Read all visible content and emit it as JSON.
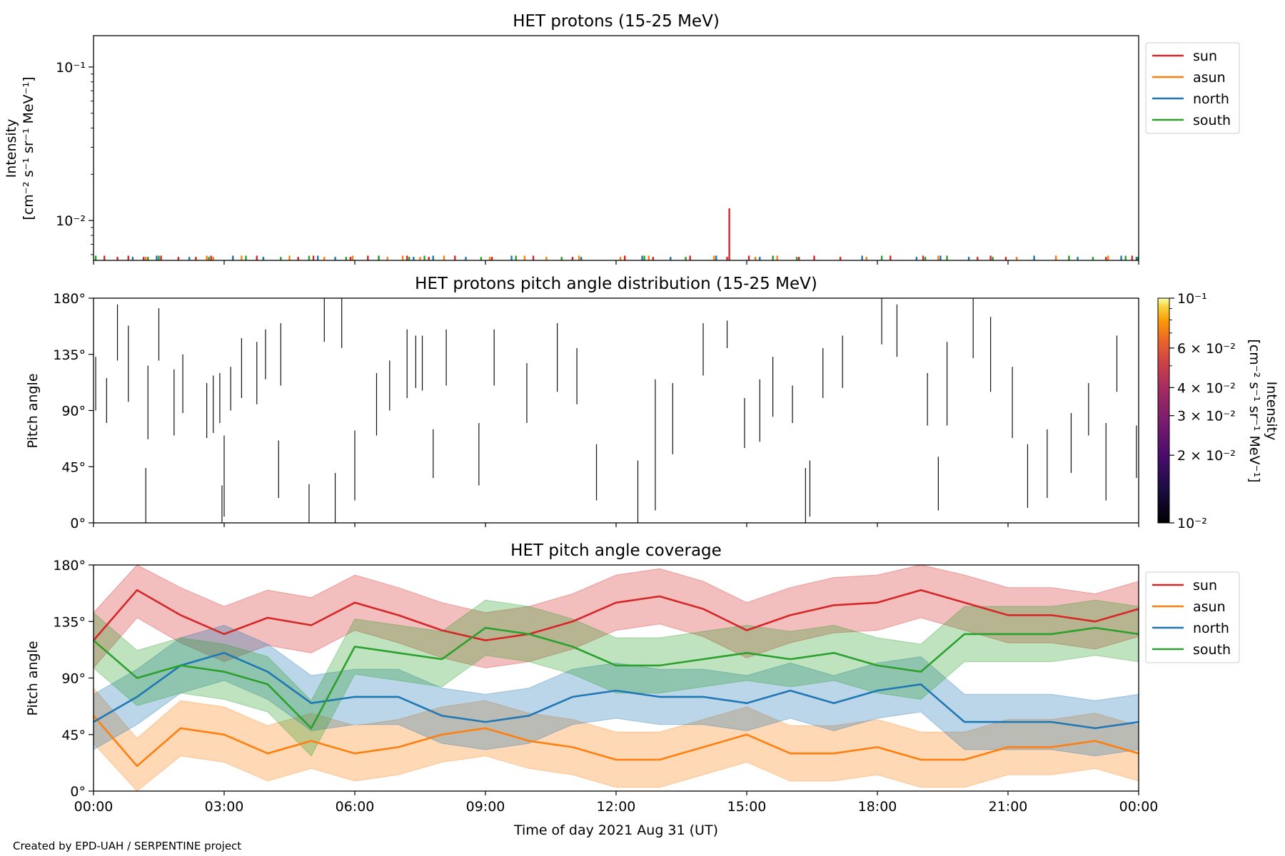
{
  "footer": {
    "credit": "Created by EPD-UAH / SERPENTINE project"
  },
  "chart_data": [
    {
      "id": "panel1",
      "type": "bar",
      "title": "HET protons (15-25 MeV)",
      "xlabel": "",
      "ylabel": [
        "Intensity",
        "[cm⁻² s⁻¹ sr⁻¹ MeV⁻¹]"
      ],
      "yscale": "log",
      "ylim": [
        0.0055,
        0.16
      ],
      "xlim": [
        0,
        24
      ],
      "yticks": [
        {
          "value": 0.01,
          "label": "10⁻²"
        },
        {
          "value": 0.1,
          "label": "10⁻¹"
        }
      ],
      "legend": {
        "placement": "outside-right-top",
        "entries": [
          "sun",
          "asun",
          "north",
          "south"
        ]
      },
      "colors": {
        "sun": "#d62728",
        "asun": "#ff7f0e",
        "north": "#1f77b4",
        "south": "#2ca02c"
      },
      "baseline": 0.0055,
      "series": [
        {
          "name": "sun",
          "x": [
            0.25,
            0.55,
            0.8,
            1.15,
            1.55,
            1.95,
            2.35,
            2.7,
            3.2,
            3.75,
            4.7,
            5.05,
            5.9,
            6.3,
            7.2,
            7.7,
            8.3,
            9.15,
            10.1,
            11.0,
            12.2,
            12.85,
            13.7,
            14.55,
            14.6,
            15.05,
            16.2,
            16.55,
            17.15,
            18.3,
            19.05,
            20.3,
            20.6,
            20.95,
            22.1,
            23.25,
            23.85
          ],
          "values": [
            0.0059,
            0.0058,
            0.0059,
            0.0058,
            0.0059,
            0.0058,
            0.0058,
            0.0059,
            0.0058,
            0.0059,
            0.0058,
            0.0059,
            0.0058,
            0.0059,
            0.0059,
            0.0058,
            0.0059,
            0.0058,
            0.0059,
            0.0058,
            0.0059,
            0.0058,
            0.0059,
            0.0058,
            0.012,
            0.0059,
            0.0058,
            0.0059,
            0.0058,
            0.0059,
            0.0059,
            0.0058,
            0.0059,
            0.0058,
            0.0059,
            0.0058,
            0.0059
          ]
        },
        {
          "name": "asun",
          "x": [
            1.2,
            2.6,
            2.75,
            3.4,
            3.9,
            4.5,
            5.3,
            5.95,
            6.75,
            7.1,
            7.5,
            8.05,
            9.1,
            9.9,
            10.4,
            11.15,
            12.1,
            12.75,
            13.25,
            14.25,
            15.2,
            15.7,
            17.75,
            19.4,
            21.2,
            22.1,
            22.4,
            23.3
          ],
          "values": [
            0.0058,
            0.0059,
            0.0058,
            0.0059,
            0.0058,
            0.0059,
            0.0058,
            0.0059,
            0.0058,
            0.0059,
            0.0058,
            0.0059,
            0.0058,
            0.0059,
            0.0058,
            0.0059,
            0.0058,
            0.0059,
            0.0058,
            0.0059,
            0.0058,
            0.0059,
            0.0058,
            0.0059,
            0.0058,
            0.0059,
            0.0058,
            0.0059
          ]
        },
        {
          "name": "north",
          "x": [
            0.9,
            1.45,
            2.2,
            3.2,
            3.9,
            5.15,
            5.55,
            6.55,
            7.35,
            7.8,
            8.55,
            9.6,
            11.2,
            12.6,
            13.25,
            14.3,
            15.3,
            17.65,
            18.9,
            19.45,
            20.1,
            21.6,
            22.6,
            23.6,
            23.95
          ],
          "values": [
            0.0058,
            0.0059,
            0.0058,
            0.0059,
            0.0058,
            0.0059,
            0.0058,
            0.0059,
            0.0058,
            0.0059,
            0.0058,
            0.0059,
            0.0058,
            0.0059,
            0.0058,
            0.0059,
            0.0058,
            0.0059,
            0.0058,
            0.0059,
            0.0058,
            0.0059,
            0.0058,
            0.0059,
            0.0058
          ]
        },
        {
          "name": "south",
          "x": [
            0.05,
            1.25,
            1.5,
            2.65,
            3.5,
            4.3,
            4.95,
            5.8,
            6.55,
            7.25,
            7.6,
            8.9,
            9.7,
            10.75,
            12.65,
            13.6,
            15.6,
            16.15,
            18.1,
            19.1,
            19.6,
            20.65,
            22.4,
            22.95,
            23.7,
            23.98
          ],
          "values": [
            0.0059,
            0.0058,
            0.0059,
            0.0058,
            0.0059,
            0.0058,
            0.0059,
            0.0058,
            0.0059,
            0.0058,
            0.0059,
            0.0058,
            0.0059,
            0.0058,
            0.0059,
            0.0058,
            0.0059,
            0.0058,
            0.0059,
            0.0058,
            0.0059,
            0.0058,
            0.0059,
            0.0058,
            0.0059,
            0.0058
          ]
        }
      ]
    },
    {
      "id": "panel2",
      "type": "heatmap",
      "title": "HET protons pitch angle distribution (15-25 MeV)",
      "xlabel": "",
      "ylabel": "Pitch angle",
      "ylim": [
        0,
        180
      ],
      "xlim": [
        0,
        24
      ],
      "yticks": [
        {
          "value": 0,
          "label": "0°"
        },
        {
          "value": 45,
          "label": "45°"
        },
        {
          "value": 90,
          "label": "90°"
        },
        {
          "value": 135,
          "label": "135°"
        },
        {
          "value": 180,
          "label": "180°"
        }
      ],
      "colorbar": {
        "label": [
          "Intensity",
          "[cm⁻² s⁻¹ sr⁻¹ MeV⁻¹]"
        ],
        "scale": "log",
        "range": [
          0.01,
          0.1
        ],
        "ticks": [
          {
            "value": 0.01,
            "label": "10⁻²"
          },
          {
            "value": 0.02,
            "label": "2 × 10⁻²"
          },
          {
            "value": 0.03,
            "label": "3 × 10⁻²"
          },
          {
            "value": 0.04,
            "label": "4 × 10⁻²"
          },
          {
            "value": 0.06,
            "label": "6 × 10⁻²"
          },
          {
            "value": 0.1,
            "label": "10⁻¹"
          }
        ],
        "colormap": "inferno"
      },
      "segments": [
        {
          "x": 0.05,
          "y0": 90,
          "y1": 133
        },
        {
          "x": 0.3,
          "y0": 80,
          "y1": 116
        },
        {
          "x": 0.55,
          "y0": 130,
          "y1": 175
        },
        {
          "x": 0.8,
          "y0": 97,
          "y1": 158
        },
        {
          "x": 1.2,
          "y0": 0,
          "y1": 44
        },
        {
          "x": 1.25,
          "y0": 67,
          "y1": 126
        },
        {
          "x": 1.5,
          "y0": 130,
          "y1": 172
        },
        {
          "x": 1.85,
          "y0": 70,
          "y1": 123
        },
        {
          "x": 2.05,
          "y0": 88,
          "y1": 135
        },
        {
          "x": 2.6,
          "y0": 68,
          "y1": 112
        },
        {
          "x": 2.75,
          "y0": 72,
          "y1": 118
        },
        {
          "x": 2.9,
          "y0": 80,
          "y1": 120
        },
        {
          "x": 2.95,
          "y0": 0,
          "y1": 30
        },
        {
          "x": 3.0,
          "y0": 5,
          "y1": 70
        },
        {
          "x": 3.15,
          "y0": 90,
          "y1": 125
        },
        {
          "x": 3.4,
          "y0": 100,
          "y1": 148
        },
        {
          "x": 3.75,
          "y0": 95,
          "y1": 145
        },
        {
          "x": 3.95,
          "y0": 115,
          "y1": 155
        },
        {
          "x": 4.25,
          "y0": 20,
          "y1": 66
        },
        {
          "x": 4.3,
          "y0": 110,
          "y1": 160
        },
        {
          "x": 4.95,
          "y0": 0,
          "y1": 31
        },
        {
          "x": 5.3,
          "y0": 145,
          "y1": 180
        },
        {
          "x": 5.55,
          "y0": 0,
          "y1": 40
        },
        {
          "x": 5.7,
          "y0": 140,
          "y1": 180
        },
        {
          "x": 6.0,
          "y0": 18,
          "y1": 74
        },
        {
          "x": 6.5,
          "y0": 70,
          "y1": 120
        },
        {
          "x": 6.8,
          "y0": 90,
          "y1": 130
        },
        {
          "x": 7.2,
          "y0": 100,
          "y1": 155
        },
        {
          "x": 7.4,
          "y0": 108,
          "y1": 150
        },
        {
          "x": 7.55,
          "y0": 106,
          "y1": 150
        },
        {
          "x": 7.8,
          "y0": 36,
          "y1": 75
        },
        {
          "x": 8.1,
          "y0": 110,
          "y1": 155
        },
        {
          "x": 8.85,
          "y0": 30,
          "y1": 80
        },
        {
          "x": 9.2,
          "y0": 110,
          "y1": 155
        },
        {
          "x": 9.95,
          "y0": 80,
          "y1": 128
        },
        {
          "x": 10.65,
          "y0": 105,
          "y1": 160
        },
        {
          "x": 11.1,
          "y0": 95,
          "y1": 140
        },
        {
          "x": 11.55,
          "y0": 18,
          "y1": 63
        },
        {
          "x": 12.5,
          "y0": 0,
          "y1": 50
        },
        {
          "x": 12.9,
          "y0": 10,
          "y1": 115
        },
        {
          "x": 13.3,
          "y0": 55,
          "y1": 112
        },
        {
          "x": 14.0,
          "y0": 118,
          "y1": 160
        },
        {
          "x": 14.55,
          "y0": 140,
          "y1": 162
        },
        {
          "x": 14.95,
          "y0": 60,
          "y1": 100
        },
        {
          "x": 15.3,
          "y0": 65,
          "y1": 115
        },
        {
          "x": 15.6,
          "y0": 85,
          "y1": 133
        },
        {
          "x": 16.05,
          "y0": 80,
          "y1": 110
        },
        {
          "x": 16.35,
          "y0": 0,
          "y1": 44
        },
        {
          "x": 16.45,
          "y0": 5,
          "y1": 50
        },
        {
          "x": 16.75,
          "y0": 100,
          "y1": 140
        },
        {
          "x": 17.2,
          "y0": 108,
          "y1": 150
        },
        {
          "x": 18.1,
          "y0": 143,
          "y1": 180
        },
        {
          "x": 18.45,
          "y0": 133,
          "y1": 175
        },
        {
          "x": 19.15,
          "y0": 78,
          "y1": 120
        },
        {
          "x": 19.4,
          "y0": 10,
          "y1": 53
        },
        {
          "x": 19.6,
          "y0": 78,
          "y1": 145
        },
        {
          "x": 20.2,
          "y0": 132,
          "y1": 180
        },
        {
          "x": 20.6,
          "y0": 105,
          "y1": 165
        },
        {
          "x": 21.1,
          "y0": 68,
          "y1": 125
        },
        {
          "x": 21.45,
          "y0": 12,
          "y1": 63
        },
        {
          "x": 21.9,
          "y0": 20,
          "y1": 75
        },
        {
          "x": 22.45,
          "y0": 40,
          "y1": 88
        },
        {
          "x": 22.85,
          "y0": 70,
          "y1": 112
        },
        {
          "x": 23.25,
          "y0": 18,
          "y1": 80
        },
        {
          "x": 23.5,
          "y0": 105,
          "y1": 150
        },
        {
          "x": 23.95,
          "y0": 36,
          "y1": 78
        }
      ]
    },
    {
      "id": "panel3",
      "type": "area",
      "title": "HET pitch angle coverage",
      "xlabel": "Time of day 2021 Aug 31 (UT)",
      "ylabel": "Pitch angle",
      "ylim": [
        0,
        180
      ],
      "xlim": [
        0,
        24
      ],
      "xticks": [
        "00:00",
        "03:00",
        "06:00",
        "09:00",
        "12:00",
        "15:00",
        "18:00",
        "21:00",
        "00:00"
      ],
      "yticks": [
        {
          "value": 0,
          "label": "0°"
        },
        {
          "value": 45,
          "label": "45°"
        },
        {
          "value": 90,
          "label": "90°"
        },
        {
          "value": 135,
          "label": "135°"
        },
        {
          "value": 180,
          "label": "180°"
        }
      ],
      "legend": {
        "placement": "outside-right-top",
        "entries": [
          "sun",
          "asun",
          "north",
          "south"
        ]
      },
      "colors": {
        "sun": "#d62728",
        "asun": "#ff7f0e",
        "north": "#1f77b4",
        "south": "#2ca02c"
      },
      "x": [
        0,
        1,
        2,
        3,
        4,
        5,
        6,
        7,
        8,
        9,
        10,
        11,
        12,
        13,
        14,
        15,
        16,
        17,
        18,
        19,
        20,
        21,
        22,
        23,
        24
      ],
      "series": [
        {
          "name": "sun",
          "values": [
            120,
            160,
            140,
            125,
            138,
            132,
            150,
            140,
            128,
            120,
            125,
            135,
            150,
            155,
            145,
            128,
            140,
            148,
            150,
            160,
            150,
            140,
            140,
            135,
            145
          ],
          "halfwidth": 22
        },
        {
          "name": "asun",
          "values": [
            60,
            20,
            50,
            45,
            30,
            40,
            30,
            35,
            45,
            50,
            40,
            35,
            25,
            25,
            35,
            45,
            30,
            30,
            35,
            25,
            25,
            35,
            35,
            40,
            30
          ],
          "halfwidth": 22
        },
        {
          "name": "north",
          "values": [
            55,
            75,
            100,
            110,
            95,
            70,
            75,
            75,
            60,
            55,
            60,
            75,
            80,
            75,
            75,
            70,
            80,
            70,
            80,
            85,
            55,
            55,
            55,
            50,
            55
          ],
          "halfwidth": 22
        },
        {
          "name": "south",
          "values": [
            120,
            90,
            100,
            95,
            85,
            50,
            115,
            110,
            105,
            130,
            125,
            115,
            100,
            100,
            105,
            110,
            105,
            110,
            100,
            95,
            125,
            125,
            125,
            130,
            125
          ],
          "halfwidth": 22
        }
      ]
    }
  ]
}
